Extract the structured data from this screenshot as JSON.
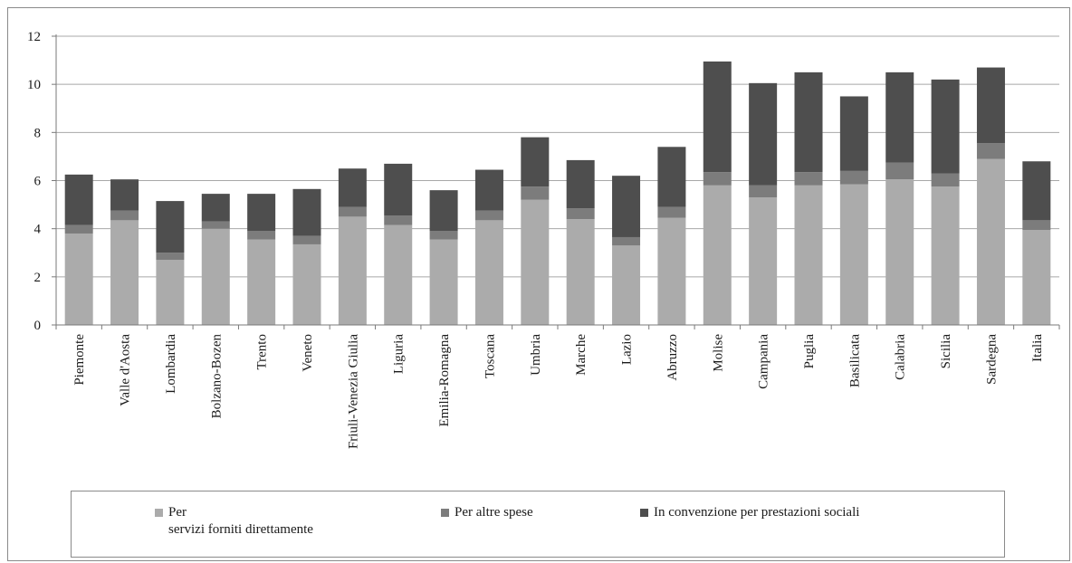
{
  "chart_data": {
    "type": "bar",
    "stacked": true,
    "categories": [
      "Piemonte",
      "Valle d'Aosta",
      "Lombardia",
      "Bolzano-Bozen",
      "Trento",
      "Veneto",
      "Friuli-Venezia Giulia",
      "Liguria",
      "Emilia-Romagna",
      "Toscana",
      "Umbria",
      "Marche",
      "Lazio",
      "Abruzzo",
      "Molise",
      "Campania",
      "Puglia",
      "Basilicata",
      "Calabria",
      "Sicilia",
      "Sardegna",
      "Italia"
    ],
    "series": [
      {
        "name": "Per\nservizi forniti direttamente",
        "color": "#ababab",
        "values": [
          3.8,
          4.35,
          2.7,
          4.0,
          3.55,
          3.35,
          4.5,
          4.15,
          3.55,
          4.35,
          5.2,
          4.4,
          3.3,
          4.45,
          5.8,
          5.3,
          5.8,
          5.85,
          6.05,
          5.75,
          6.9,
          3.95
        ]
      },
      {
        "name": "Per altre spese",
        "color": "#7c7c7c",
        "values": [
          0.35,
          0.4,
          0.3,
          0.3,
          0.35,
          0.35,
          0.4,
          0.4,
          0.35,
          0.4,
          0.55,
          0.45,
          0.35,
          0.45,
          0.55,
          0.5,
          0.55,
          0.55,
          0.7,
          0.55,
          0.65,
          0.4
        ]
      },
      {
        "name": "In convenzione per prestazioni sociali",
        "color": "#4e4e4e",
        "values": [
          2.1,
          1.3,
          2.15,
          1.15,
          1.55,
          1.95,
          1.6,
          2.15,
          1.7,
          1.7,
          2.05,
          2.0,
          2.55,
          2.5,
          4.6,
          4.25,
          4.15,
          3.1,
          3.75,
          3.9,
          3.15,
          2.45
        ]
      }
    ],
    "yticks": [
      "0",
      "2",
      "4",
      "6",
      "8",
      "10",
      "12"
    ],
    "ylim": [
      0,
      12
    ],
    "grid": true,
    "legend_position": "bottom"
  }
}
